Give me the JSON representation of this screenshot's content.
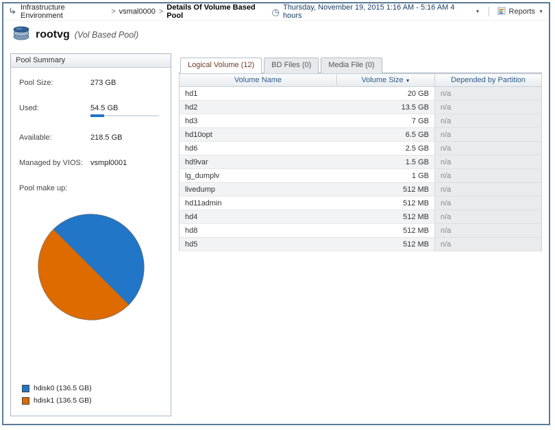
{
  "breadcrumb": {
    "items": [
      {
        "label": "Infrastructure Environment"
      },
      {
        "label": "vsmal0000"
      },
      {
        "label": "Details Of Volume Based Pool"
      }
    ]
  },
  "topbar": {
    "time_range": "Thursday, November 19, 2015 1:16 AM - 5:16 AM 4 hours",
    "reports_label": "Reports"
  },
  "header": {
    "title": "rootvg",
    "subtitle": "(Vol Based Pool)"
  },
  "pool_summary": {
    "panel_title": "Pool Summary",
    "fields": [
      {
        "label": "Pool Size:",
        "value": "273 GB"
      },
      {
        "label": "Used:",
        "value": "54.5 GB",
        "progress_percent": 20
      },
      {
        "label": "Available:",
        "value": "218.5 GB"
      },
      {
        "label": "Managed by VIOS:",
        "value": "vsmpl0001"
      },
      {
        "label": "Pool make up:",
        "value": ""
      }
    ],
    "legend": [
      {
        "label": "hdisk0 (136.5 GB)",
        "color": "#2176c7"
      },
      {
        "label": "hdisk1 (136.5 GB)",
        "color": "#dd6b00"
      }
    ]
  },
  "tabs": [
    {
      "label": "Logical Volume (12)",
      "active": true
    },
    {
      "label": "BD Files (0)",
      "active": false
    },
    {
      "label": "Media File (0)",
      "active": false
    }
  ],
  "table": {
    "columns": [
      "Volume Name",
      "Volume Size",
      "Depended by Partition"
    ],
    "sorted_column": "Volume Size",
    "sort_direction": "desc",
    "rows": [
      {
        "name": "hd1",
        "size": "20 GB",
        "depended": "n/a"
      },
      {
        "name": "hd2",
        "size": "13.5 GB",
        "depended": "n/a"
      },
      {
        "name": "hd3",
        "size": "7 GB",
        "depended": "n/a"
      },
      {
        "name": "hd10opt",
        "size": "6.5 GB",
        "depended": "n/a"
      },
      {
        "name": "hd6",
        "size": "2.5 GB",
        "depended": "n/a"
      },
      {
        "name": "hd9var",
        "size": "1.5 GB",
        "depended": "n/a"
      },
      {
        "name": "lg_dumplv",
        "size": "1 GB",
        "depended": "n/a"
      },
      {
        "name": "livedump",
        "size": "512 MB",
        "depended": "n/a"
      },
      {
        "name": "hd11admin",
        "size": "512 MB",
        "depended": "n/a"
      },
      {
        "name": "hd4",
        "size": "512 MB",
        "depended": "n/a"
      },
      {
        "name": "hd8",
        "size": "512 MB",
        "depended": "n/a"
      },
      {
        "name": "hd5",
        "size": "512 MB",
        "depended": "n/a"
      }
    ]
  },
  "chart_data": {
    "type": "pie",
    "title": "Pool make up",
    "labels": [
      "hdisk0",
      "hdisk1"
    ],
    "values": [
      136.5,
      136.5
    ],
    "unit": "GB",
    "colors": [
      "#2176c7",
      "#dd6b00"
    ],
    "legend_position": "bottom-left",
    "start_angle_deg": 225
  }
}
